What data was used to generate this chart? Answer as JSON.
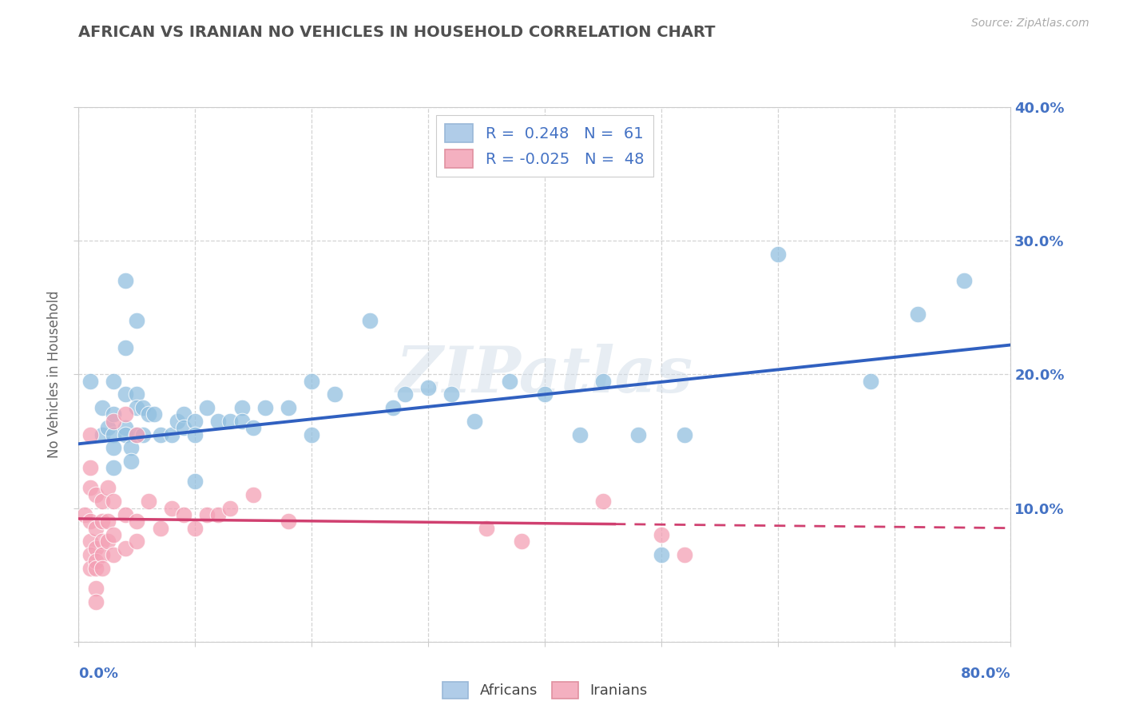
{
  "title": "AFRICAN VS IRANIAN NO VEHICLES IN HOUSEHOLD CORRELATION CHART",
  "source": "Source: ZipAtlas.com",
  "ylabel": "No Vehicles in Household",
  "xlim": [
    0.0,
    0.8
  ],
  "ylim": [
    0.0,
    0.4
  ],
  "yticks": [
    0.0,
    0.1,
    0.2,
    0.3,
    0.4
  ],
  "ytick_labels": [
    "",
    "10.0%",
    "20.0%",
    "30.0%",
    "40.0%"
  ],
  "watermark": "ZIPatlas",
  "african_color": "#92c0e0",
  "iranian_color": "#f4a0b5",
  "african_line_color": "#3060c0",
  "iranian_line_color": "#d04070",
  "african_scatter": [
    [
      0.01,
      0.195
    ],
    [
      0.02,
      0.175
    ],
    [
      0.02,
      0.155
    ],
    [
      0.025,
      0.16
    ],
    [
      0.03,
      0.195
    ],
    [
      0.03,
      0.17
    ],
    [
      0.03,
      0.155
    ],
    [
      0.03,
      0.145
    ],
    [
      0.03,
      0.13
    ],
    [
      0.04,
      0.27
    ],
    [
      0.04,
      0.22
    ],
    [
      0.04,
      0.185
    ],
    [
      0.04,
      0.16
    ],
    [
      0.04,
      0.155
    ],
    [
      0.045,
      0.145
    ],
    [
      0.045,
      0.135
    ],
    [
      0.05,
      0.24
    ],
    [
      0.05,
      0.185
    ],
    [
      0.05,
      0.175
    ],
    [
      0.05,
      0.155
    ],
    [
      0.055,
      0.175
    ],
    [
      0.055,
      0.155
    ],
    [
      0.06,
      0.17
    ],
    [
      0.065,
      0.17
    ],
    [
      0.07,
      0.155
    ],
    [
      0.08,
      0.155
    ],
    [
      0.085,
      0.165
    ],
    [
      0.09,
      0.17
    ],
    [
      0.09,
      0.16
    ],
    [
      0.1,
      0.165
    ],
    [
      0.1,
      0.155
    ],
    [
      0.1,
      0.12
    ],
    [
      0.11,
      0.175
    ],
    [
      0.12,
      0.165
    ],
    [
      0.13,
      0.165
    ],
    [
      0.14,
      0.175
    ],
    [
      0.14,
      0.165
    ],
    [
      0.15,
      0.16
    ],
    [
      0.16,
      0.175
    ],
    [
      0.18,
      0.175
    ],
    [
      0.2,
      0.195
    ],
    [
      0.2,
      0.155
    ],
    [
      0.22,
      0.185
    ],
    [
      0.25,
      0.24
    ],
    [
      0.27,
      0.175
    ],
    [
      0.28,
      0.185
    ],
    [
      0.3,
      0.19
    ],
    [
      0.32,
      0.185
    ],
    [
      0.34,
      0.165
    ],
    [
      0.37,
      0.195
    ],
    [
      0.4,
      0.185
    ],
    [
      0.43,
      0.155
    ],
    [
      0.45,
      0.195
    ],
    [
      0.48,
      0.155
    ],
    [
      0.5,
      0.065
    ],
    [
      0.52,
      0.155
    ],
    [
      0.6,
      0.29
    ],
    [
      0.68,
      0.195
    ],
    [
      0.72,
      0.245
    ],
    [
      0.76,
      0.27
    ]
  ],
  "iranian_scatter": [
    [
      0.005,
      0.095
    ],
    [
      0.01,
      0.155
    ],
    [
      0.01,
      0.13
    ],
    [
      0.01,
      0.115
    ],
    [
      0.01,
      0.09
    ],
    [
      0.01,
      0.075
    ],
    [
      0.01,
      0.065
    ],
    [
      0.01,
      0.055
    ],
    [
      0.015,
      0.11
    ],
    [
      0.015,
      0.085
    ],
    [
      0.015,
      0.07
    ],
    [
      0.015,
      0.06
    ],
    [
      0.015,
      0.055
    ],
    [
      0.015,
      0.04
    ],
    [
      0.015,
      0.03
    ],
    [
      0.02,
      0.105
    ],
    [
      0.02,
      0.09
    ],
    [
      0.02,
      0.075
    ],
    [
      0.02,
      0.065
    ],
    [
      0.02,
      0.055
    ],
    [
      0.025,
      0.115
    ],
    [
      0.025,
      0.09
    ],
    [
      0.025,
      0.075
    ],
    [
      0.03,
      0.165
    ],
    [
      0.03,
      0.105
    ],
    [
      0.03,
      0.08
    ],
    [
      0.03,
      0.065
    ],
    [
      0.04,
      0.17
    ],
    [
      0.04,
      0.095
    ],
    [
      0.04,
      0.07
    ],
    [
      0.05,
      0.155
    ],
    [
      0.05,
      0.09
    ],
    [
      0.05,
      0.075
    ],
    [
      0.06,
      0.105
    ],
    [
      0.07,
      0.085
    ],
    [
      0.08,
      0.1
    ],
    [
      0.09,
      0.095
    ],
    [
      0.1,
      0.085
    ],
    [
      0.11,
      0.095
    ],
    [
      0.12,
      0.095
    ],
    [
      0.13,
      0.1
    ],
    [
      0.15,
      0.11
    ],
    [
      0.18,
      0.09
    ],
    [
      0.35,
      0.085
    ],
    [
      0.38,
      0.075
    ],
    [
      0.45,
      0.105
    ],
    [
      0.5,
      0.08
    ],
    [
      0.52,
      0.065
    ]
  ],
  "african_line": {
    "x0": 0.0,
    "y0": 0.148,
    "x1": 0.8,
    "y1": 0.222
  },
  "iranian_line_solid": {
    "x0": 0.0,
    "y0": 0.092,
    "x1": 0.46,
    "y1": 0.088
  },
  "iranian_line_dash": {
    "x0": 0.46,
    "y0": 0.088,
    "x1": 0.8,
    "y1": 0.085
  },
  "background_color": "#ffffff",
  "grid_color": "#c8c8c8",
  "title_color": "#505050",
  "axis_label_color": "#4472c4"
}
